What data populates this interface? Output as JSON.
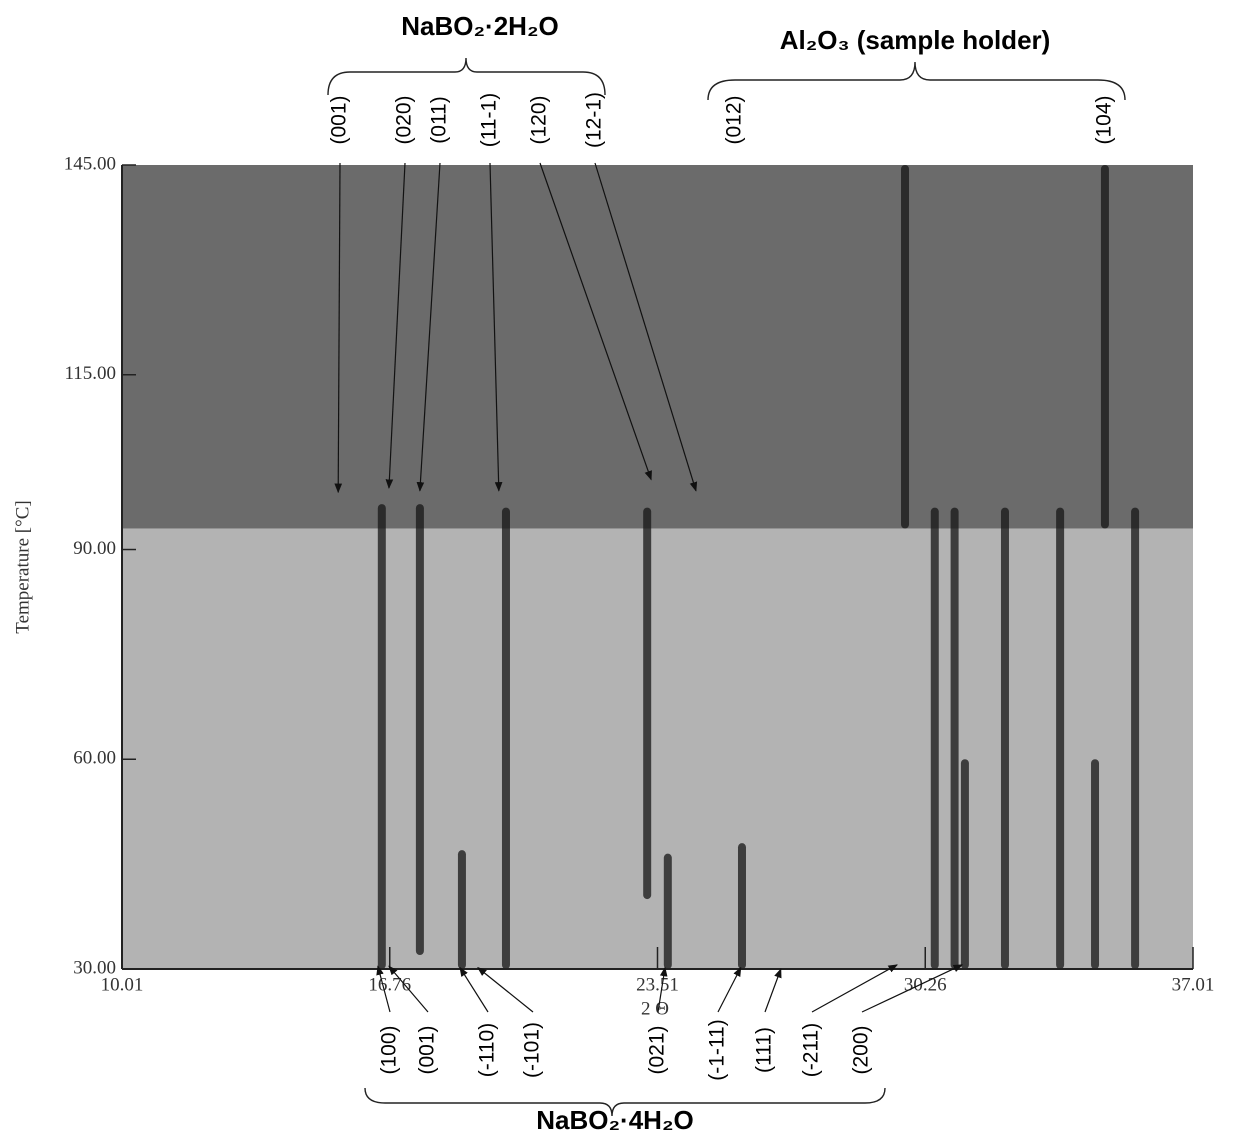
{
  "chart_data": {
    "type": "image",
    "x_label": "2 Θ",
    "y_label": "Temperature [°C]",
    "xlim": [
      10.01,
      37.01
    ],
    "xticks": [
      10.01,
      16.76,
      23.51,
      30.26,
      37.01
    ],
    "ylim": [
      30,
      145
    ],
    "yticks": [
      {
        "value": 30,
        "label": "30.00"
      },
      {
        "value": 60,
        "label": "60.00"
      },
      {
        "value": 90,
        "label": "90.00"
      },
      {
        "value": 115,
        "label": "115.00"
      },
      {
        "value": 145,
        "label": "145.00"
      }
    ],
    "phase_boundary": 93,
    "upper_color": "#6b6b6b",
    "lower_color": "#b3b3b3",
    "band_color": "#151515",
    "bands": [
      {
        "x": 16.56,
        "y0": 30,
        "y1": 96.5
      },
      {
        "x": 17.52,
        "y0": 32,
        "y1": 96.5
      },
      {
        "x": 19.69,
        "y0": 30,
        "y1": 96
      },
      {
        "x": 18.58,
        "y0": 30,
        "y1": 47
      },
      {
        "x": 23.25,
        "y0": 40,
        "y1": 96
      },
      {
        "x": 23.77,
        "y0": 30,
        "y1": 46.5
      },
      {
        "x": 25.64,
        "y0": 30,
        "y1": 48
      },
      {
        "x": 29.75,
        "y0": 93,
        "y1": 145
      },
      {
        "x": 30.5,
        "y0": 30,
        "y1": 96
      },
      {
        "x": 31.0,
        "y0": 30,
        "y1": 96
      },
      {
        "x": 31.26,
        "y0": 30,
        "y1": 60
      },
      {
        "x": 32.27,
        "y0": 30,
        "y1": 96
      },
      {
        "x": 33.66,
        "y0": 30,
        "y1": 96
      },
      {
        "x": 34.54,
        "y0": 30,
        "y1": 60
      },
      {
        "x": 34.79,
        "y0": 93,
        "y1": 145
      },
      {
        "x": 35.55,
        "y0": 30,
        "y1": 96
      }
    ],
    "groups": [
      {
        "label": "NaBO₂·2H₂O",
        "peaks": [
          {
            "label": "(001)",
            "x": 15.46,
            "y": 98.2
          },
          {
            "label": "(020)",
            "x": 16.74,
            "y": 98.8
          },
          {
            "label": "(011)",
            "x": 17.52,
            "y": 98.4
          },
          {
            "label": "(11-1)",
            "x": 19.51,
            "y": 98.4
          },
          {
            "label": "(120)",
            "x": 23.35,
            "y": 100
          },
          {
            "label": "(12-1)",
            "x": 24.48,
            "y": 98.4
          }
        ]
      },
      {
        "label": "Al₂O₃ (sample holder)",
        "peaks": [
          {
            "label": "(012)"
          },
          {
            "label": "(104)"
          }
        ]
      },
      {
        "label": "NaBO₂·4H₂O",
        "peaks": [
          {
            "label": "(100)",
            "x": 16.46,
            "y": 30.4
          },
          {
            "label": "(001)",
            "x": 16.74,
            "y": 30.4
          },
          {
            "label": "(-110)",
            "x": 18.53,
            "y": 30.2
          },
          {
            "label": "(-101)",
            "x": 18.98,
            "y": 30.2
          },
          {
            "label": "(021)",
            "x": 23.7,
            "y": 30.2
          },
          {
            "label": "(-1-11)",
            "x": 25.61,
            "y": 30.2
          },
          {
            "label": "(111)",
            "x": 26.62,
            "y": 30
          },
          {
            "label": "(-211)",
            "x": 29.55,
            "y": 30.6
          },
          {
            "label": "(200)",
            "x": 31.19,
            "y": 30.6
          }
        ]
      }
    ]
  }
}
